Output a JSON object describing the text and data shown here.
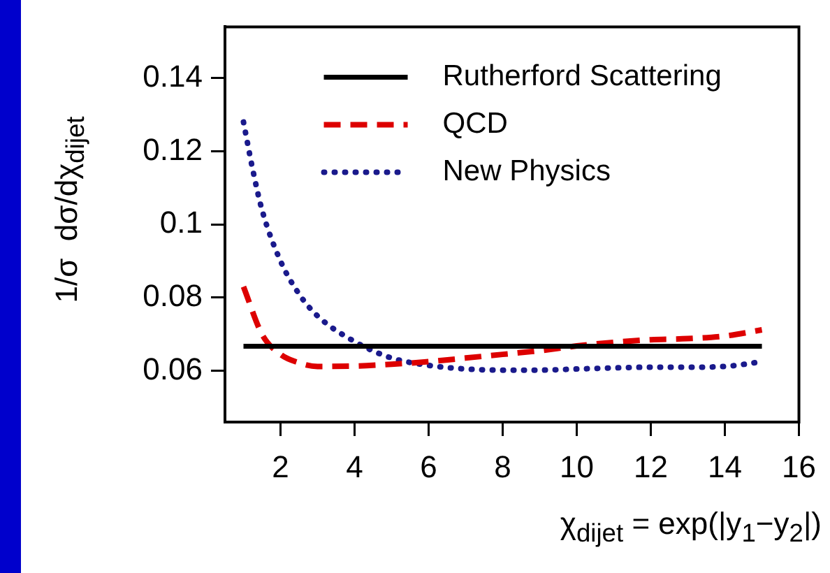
{
  "chart_data": {
    "type": "line",
    "xlabel": "χ$_{dijet}$ = exp(|y$_{1}$−y$_{2}$|)",
    "ylabel": "1/σ  dσ/dχ$_{dijet}$",
    "xlim": [
      0.5,
      16
    ],
    "xticks": [
      2,
      4,
      6,
      8,
      10,
      12,
      14,
      16
    ],
    "ylim": [
      0.046,
      0.154
    ],
    "yticks": [
      0.06,
      0.08,
      {
        "value": 0.1,
        "label": "0.1"
      },
      0.12,
      0.14
    ],
    "grid": false,
    "legend": "top right",
    "marker": "none",
    "series": [
      {
        "name": "Rutherford Scattering",
        "color": "#000000",
        "line_style": "solid",
        "x": [
          1,
          15
        ],
        "values": [
          0.0667,
          0.0667
        ]
      },
      {
        "name": "QCD",
        "color": "#dd0000",
        "line_style": "dashed",
        "x": [
          1,
          1.5,
          2,
          2.5,
          3,
          4,
          5,
          6,
          7,
          8,
          9,
          10,
          11,
          12,
          13,
          14,
          15
        ],
        "values": [
          0.083,
          0.07,
          0.0645,
          0.0622,
          0.0612,
          0.0613,
          0.0618,
          0.0625,
          0.0635,
          0.0645,
          0.0655,
          0.0668,
          0.0678,
          0.0685,
          0.0688,
          0.0695,
          0.0712
        ]
      },
      {
        "name": "New Physics",
        "color": "#1a1a8c",
        "line_style": "dotted",
        "x": [
          1,
          1.25,
          1.5,
          2,
          2.5,
          3,
          4,
          5,
          6,
          7,
          8,
          9,
          10,
          11,
          12,
          13,
          14,
          15
        ],
        "values": [
          0.128,
          0.115,
          0.104,
          0.09,
          0.081,
          0.075,
          0.068,
          0.0635,
          0.0615,
          0.0605,
          0.0602,
          0.0602,
          0.0605,
          0.0608,
          0.061,
          0.061,
          0.0612,
          0.0625
        ]
      }
    ]
  }
}
